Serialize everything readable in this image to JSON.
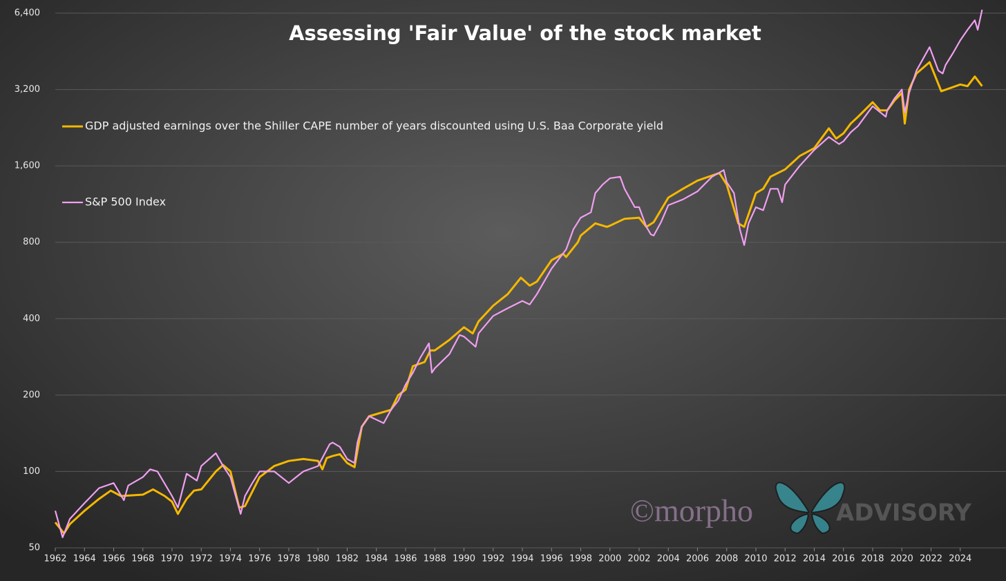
{
  "chart_data": {
    "type": "line",
    "title": "Assessing 'Fair Value' of the stock market",
    "log_scale": true,
    "grid": true,
    "xlim": [
      1962,
      2026
    ],
    "xticks": [
      1962,
      1964,
      1966,
      1968,
      1970,
      1972,
      1974,
      1976,
      1978,
      1980,
      1982,
      1984,
      1986,
      1988,
      1990,
      1992,
      1994,
      1996,
      1998,
      2000,
      2002,
      2004,
      2006,
      2008,
      2010,
      2012,
      2014,
      2016,
      2018,
      2020,
      2022,
      2024
    ],
    "ylim": [
      50,
      6400
    ],
    "yticks": [
      50,
      100,
      200,
      400,
      800,
      {
        "value": 1600,
        "label": "1,600"
      },
      {
        "value": 3200,
        "label": "3,200"
      },
      {
        "value": 6400,
        "label": "6,400"
      }
    ],
    "series": [
      {
        "name": "GDP adjusted earnings over the Shiller CAPE number of years discounted using U.S. Baa Corporate yield",
        "color": "#f5b800",
        "x": [
          1962,
          1962.6,
          1963,
          1964,
          1965,
          1965.8,
          1966.5,
          1968,
          1968.7,
          1969.5,
          1970,
          1970.4,
          1971,
          1971.5,
          1972,
          1973,
          1973.5,
          1974,
          1974.6,
          1975,
          1976,
          1977,
          1978,
          1979,
          1980,
          1980.3,
          1980.6,
          1981,
          1981.5,
          1982,
          1982.5,
          1983,
          1983.5,
          1985,
          1985.5,
          1986,
          1986.5,
          1987.3,
          1987.7,
          1988,
          1989,
          1990,
          1990.6,
          1991,
          1992,
          1993,
          1993.9,
          1994.5,
          1995,
          1996,
          1996.8,
          1997,
          1997.8,
          1998,
          1999,
          1999.8,
          2000,
          2001,
          2002,
          2002.5,
          2003,
          2004,
          2005,
          2006,
          2007.5,
          2008,
          2008.8,
          2009.2,
          2010,
          2010.5,
          2011,
          2012,
          2013,
          2014,
          2015,
          2015.5,
          2016,
          2016.5,
          2017,
          2018,
          2018.5,
          2019,
          2019.5,
          2020,
          2020.2,
          2020.5,
          2021,
          2021.9,
          2022.7,
          2024,
          2024.5,
          2025,
          2025.5
        ],
        "values": [
          63,
          57,
          62,
          70,
          78,
          84,
          80,
          81,
          85,
          80,
          76,
          68,
          78,
          84,
          85,
          100,
          106,
          100,
          72,
          73,
          95,
          105,
          110,
          112,
          110,
          102,
          113,
          115,
          117,
          108,
          104,
          150,
          165,
          175,
          200,
          210,
          260,
          270,
          300,
          300,
          330,
          370,
          350,
          390,
          450,
          500,
          580,
          540,
          560,
          680,
          720,
          700,
          800,
          850,
          950,
          920,
          930,
          990,
          1000,
          920,
          960,
          1200,
          1300,
          1400,
          1500,
          1350,
          950,
          920,
          1250,
          1300,
          1450,
          1550,
          1750,
          1880,
          2250,
          2050,
          2150,
          2350,
          2500,
          2850,
          2650,
          2650,
          2900,
          3100,
          2350,
          3200,
          3700,
          4100,
          3150,
          3350,
          3300,
          3600,
          3300
        ]
      },
      {
        "name": "S&P 500 Index",
        "color": "#f0a0f0",
        "x": [
          1962,
          1962.5,
          1963,
          1964,
          1965,
          1966,
          1966.7,
          1967,
          1968,
          1968.5,
          1969,
          1970,
          1970.4,
          1971,
          1971.7,
          1972,
          1973,
          1973.5,
          1974,
          1974.7,
          1975,
          1975.5,
          1976,
          1977,
          1978,
          1978.5,
          1979,
          1980,
          1980.8,
          1981,
          1981.5,
          1982,
          1982.5,
          1982.7,
          1983,
          1983.5,
          1984,
          1984.5,
          1985,
          1985.5,
          1986,
          1986.5,
          1987,
          1987.6,
          1987.8,
          1988,
          1989,
          1989.7,
          1990,
          1990.8,
          1991,
          1992,
          1993,
          1994,
          1994.5,
          1995,
          1996,
          1997,
          1997.5,
          1998,
          1998.7,
          1999,
          1999.5,
          2000,
          2000.7,
          2001,
          2001.7,
          2002,
          2002.5,
          2002.8,
          2003,
          2003.5,
          2004,
          2005,
          2006,
          2007,
          2007.8,
          2008,
          2008.5,
          2008.9,
          2009.2,
          2009.5,
          2010,
          2010.5,
          2011,
          2011.5,
          2011.8,
          2012,
          2013,
          2014,
          2015,
          2015.7,
          2016,
          2016.5,
          2017,
          2018,
          2018.9,
          2019,
          2019.5,
          2020,
          2020.2,
          2020.5,
          2021,
          2021.9,
          2022.5,
          2022.8,
          2023,
          2023.5,
          2024,
          2024.5,
          2025,
          2025.2,
          2025.5
        ],
        "values": [
          70,
          55,
          65,
          75,
          86,
          90,
          77,
          88,
          95,
          102,
          100,
          80,
          72,
          98,
          92,
          105,
          118,
          105,
          95,
          68,
          80,
          90,
          100,
          100,
          90,
          95,
          100,
          105,
          128,
          130,
          125,
          112,
          108,
          130,
          150,
          165,
          160,
          155,
          175,
          190,
          220,
          245,
          280,
          320,
          245,
          255,
          290,
          345,
          340,
          310,
          350,
          410,
          440,
          470,
          455,
          500,
          630,
          750,
          900,
          1000,
          1050,
          1250,
          1350,
          1430,
          1450,
          1300,
          1100,
          1100,
          920,
          860,
          850,
          960,
          1120,
          1180,
          1270,
          1450,
          1540,
          1380,
          1250,
          900,
          780,
          950,
          1100,
          1070,
          1300,
          1300,
          1150,
          1350,
          1600,
          1850,
          2080,
          1950,
          2000,
          2170,
          2300,
          2750,
          2500,
          2650,
          2950,
          3200,
          2600,
          3100,
          3800,
          4700,
          3800,
          3700,
          4000,
          4450,
          5000,
          5500,
          6000,
          5500,
          6600
        ]
      }
    ],
    "watermark": {
      "brand": "©morpho",
      "suffix": "ADVISORY"
    }
  }
}
